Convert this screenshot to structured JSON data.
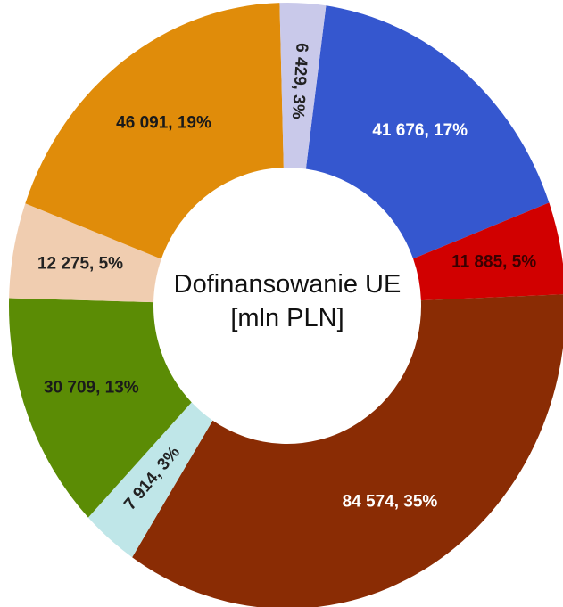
{
  "chart_data": {
    "type": "donut",
    "title": "Dofinansowanie UE [mln PLN]",
    "values": [
      41676,
      11885,
      84574,
      7914,
      30709,
      12275,
      46091,
      6429
    ],
    "value_labels": [
      "41 676, 17%",
      "11 885, 5%",
      "84 574, 35%",
      "7 914, 3%",
      "30 709, 13%",
      "12 275, 5%",
      "46 091, 19%",
      "6 429, 3%"
    ],
    "colors": [
      "#3557cf",
      "#d10000",
      "#8a2c04",
      "#bfe6e8",
      "#5b8c05",
      "#f0cdb0",
      "#e08c0a",
      "#c9c9ea"
    ],
    "label_colors": [
      "#ffffff",
      "#3a0000",
      "#ffffff",
      "#222222",
      "#1a1a1a",
      "#222222",
      "#1a1a1a",
      "#222222"
    ]
  }
}
